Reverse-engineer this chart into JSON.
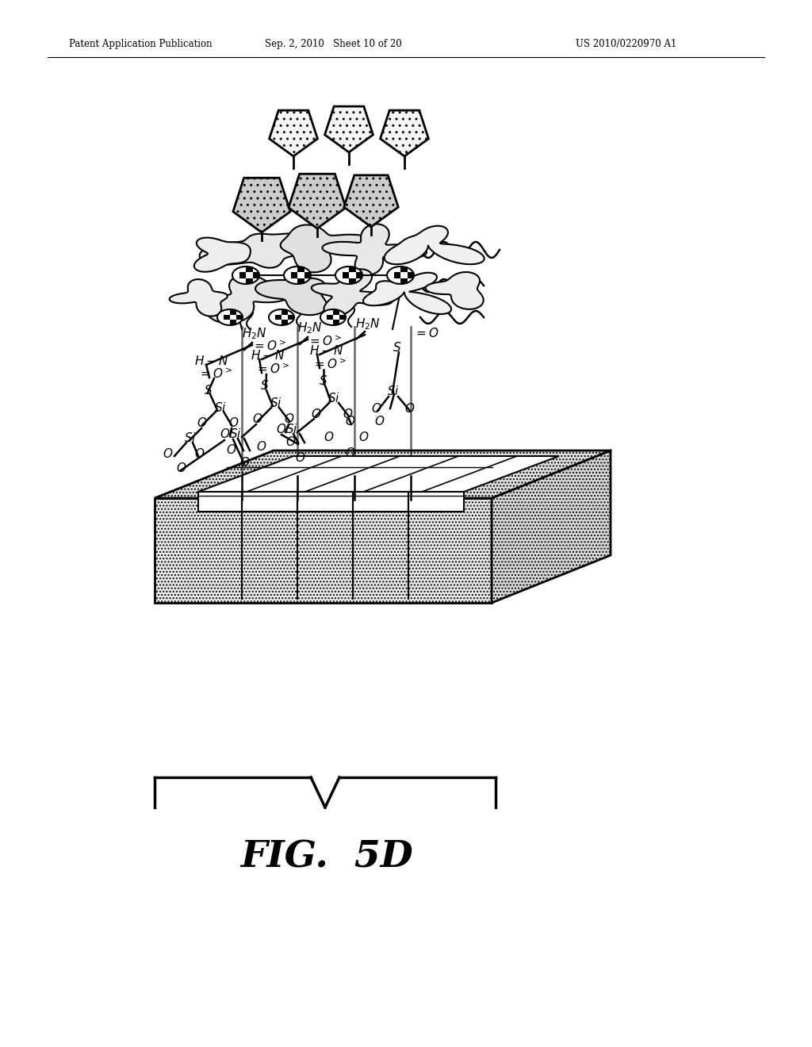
{
  "bg_color": "#ffffff",
  "header_left": "Patent Application Publication",
  "header_mid": "Sep. 2, 2010   Sheet 10 of 20",
  "header_right": "US 2010/0220970 A1",
  "fig_label": "FIG.  5D"
}
